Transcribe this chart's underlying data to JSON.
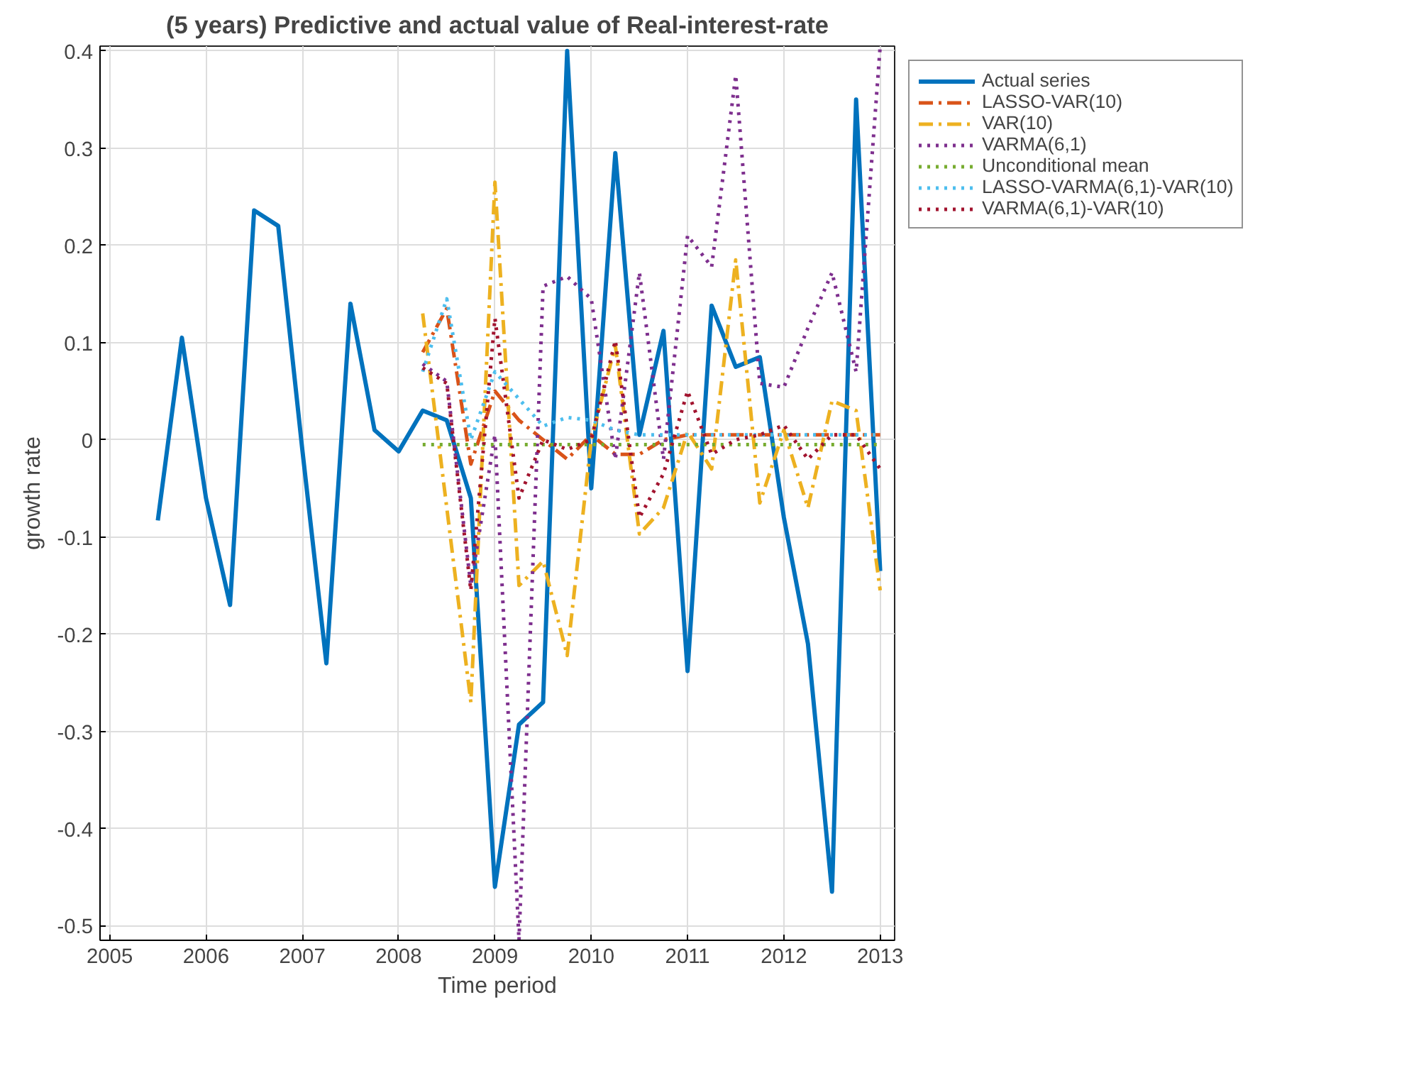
{
  "chart_data": {
    "type": "line",
    "title": "(5 years) Predictive and actual value of Real-interest-rate",
    "xlabel": "Time period",
    "ylabel": "growth rate",
    "xlim": [
      2004.9,
      2013.15
    ],
    "ylim": [
      -0.515,
      0.405
    ],
    "xticks": [
      2005,
      2006,
      2007,
      2008,
      2009,
      2010,
      2011,
      2012,
      2013
    ],
    "yticks": [
      -0.5,
      -0.4,
      -0.3,
      -0.2,
      -0.1,
      0,
      0.1,
      0.2,
      0.3,
      0.4
    ],
    "grid": true,
    "legend": "top right",
    "series": [
      {
        "name": "Actual series",
        "color": "#0072bd",
        "line_style": "solid",
        "x": [
          2005.5,
          2005.75,
          2006.0,
          2006.25,
          2006.5,
          2006.75,
          2007.0,
          2007.25,
          2007.5,
          2007.75,
          2008.0,
          2008.25,
          2008.5,
          2008.75,
          2009.0,
          2009.25,
          2009.5,
          2009.75,
          2010.0,
          2010.25,
          2010.5,
          2010.75,
          2011.0,
          2011.25,
          2011.5,
          2011.75,
          2012.0,
          2012.25,
          2012.5,
          2012.75,
          2013.0
        ],
        "values": [
          -0.083,
          0.105,
          -0.06,
          -0.17,
          0.236,
          0.22,
          -0.01,
          -0.23,
          0.14,
          0.01,
          -0.012,
          0.03,
          0.02,
          -0.06,
          -0.46,
          -0.293,
          -0.27,
          0.4,
          -0.05,
          0.295,
          0.005,
          0.112,
          -0.238,
          0.138,
          0.075,
          0.085,
          -0.08,
          -0.21,
          -0.465,
          0.35,
          -0.135
        ]
      },
      {
        "name": "LASSO-VAR(10)",
        "color": "#d95319",
        "line_style": "dashdot",
        "x": [
          2008.25,
          2008.5,
          2008.75,
          2009.0,
          2009.25,
          2009.5,
          2009.75,
          2010.0,
          2010.25,
          2010.5,
          2010.75,
          2011.0,
          2011.25,
          2011.5,
          2011.75,
          2012.0,
          2012.25,
          2012.5,
          2012.75,
          2013.0
        ],
        "values": [
          0.09,
          0.135,
          -0.025,
          0.05,
          0.02,
          0.0,
          -0.02,
          0.005,
          -0.015,
          -0.015,
          0.0,
          0.005,
          0.005,
          0.005,
          0.005,
          0.005,
          0.005,
          0.005,
          0.005,
          0.005
        ]
      },
      {
        "name": "VAR(10)",
        "color": "#edb120",
        "line_style": "dashdot",
        "x": [
          2008.25,
          2008.5,
          2008.75,
          2009.0,
          2009.25,
          2009.5,
          2009.75,
          2010.0,
          2010.25,
          2010.5,
          2010.75,
          2011.0,
          2011.25,
          2011.5,
          2011.75,
          2012.0,
          2012.25,
          2012.5,
          2012.75,
          2013.0
        ],
        "values": [
          0.13,
          -0.07,
          -0.27,
          0.265,
          -0.15,
          -0.125,
          -0.222,
          0.0,
          0.097,
          -0.097,
          -0.07,
          0.008,
          -0.03,
          0.185,
          -0.065,
          0.01,
          -0.07,
          0.04,
          0.03,
          -0.155
        ]
      },
      {
        "name": "VARMA(6,1)",
        "color": "#7e2f8e",
        "line_style": "dotted",
        "x": [
          2008.25,
          2008.5,
          2008.75,
          2009.0,
          2009.25,
          2009.5,
          2009.75,
          2010.0,
          2010.25,
          2010.5,
          2010.75,
          2011.0,
          2011.25,
          2011.5,
          2011.75,
          2012.0,
          2012.25,
          2012.5,
          2012.75,
          2013.0
        ],
        "values": [
          0.078,
          0.06,
          -0.15,
          0.005,
          -0.515,
          0.158,
          0.168,
          0.145,
          -0.02,
          0.172,
          -0.02,
          0.21,
          0.178,
          0.375,
          0.058,
          0.054,
          0.115,
          0.172,
          0.07,
          0.405
        ]
      },
      {
        "name": "Unconditional mean",
        "color": "#77ac30",
        "line_style": "dotted",
        "x": [
          2008.25,
          2013.0
        ],
        "values": [
          -0.005,
          -0.005
        ]
      },
      {
        "name": "LASSO-VARMA(6,1)-VAR(10)",
        "color": "#4dbeee",
        "line_style": "dotted",
        "x": [
          2008.25,
          2008.5,
          2008.75,
          2009.0,
          2009.25,
          2009.5,
          2009.75,
          2010.0,
          2010.25,
          2010.5,
          2010.75,
          2011.0,
          2011.25,
          2011.5,
          2011.75,
          2012.0,
          2012.25,
          2012.5,
          2012.75,
          2013.0
        ],
        "values": [
          0.07,
          0.145,
          0.0,
          0.07,
          0.042,
          0.014,
          0.023,
          0.02,
          0.01,
          0.005,
          0.005,
          0.005,
          0.005,
          0.005,
          0.005,
          0.005,
          0.005,
          0.005,
          0.005,
          0.005
        ]
      },
      {
        "name": "VARMA(6,1)-VAR(10)",
        "color": "#a2142f",
        "line_style": "dotted",
        "x": [
          2008.25,
          2008.5,
          2008.75,
          2009.0,
          2009.25,
          2009.5,
          2009.75,
          2010.0,
          2010.25,
          2010.5,
          2010.75,
          2011.0,
          2011.25,
          2011.5,
          2011.75,
          2012.0,
          2012.25,
          2012.5,
          2012.75,
          2013.0
        ],
        "values": [
          0.074,
          0.058,
          -0.155,
          0.125,
          -0.06,
          0.0,
          -0.01,
          0.0,
          0.102,
          -0.08,
          -0.035,
          0.05,
          -0.015,
          0.0,
          0.005,
          0.015,
          -0.02,
          0.005,
          0.005,
          -0.03
        ]
      }
    ]
  }
}
